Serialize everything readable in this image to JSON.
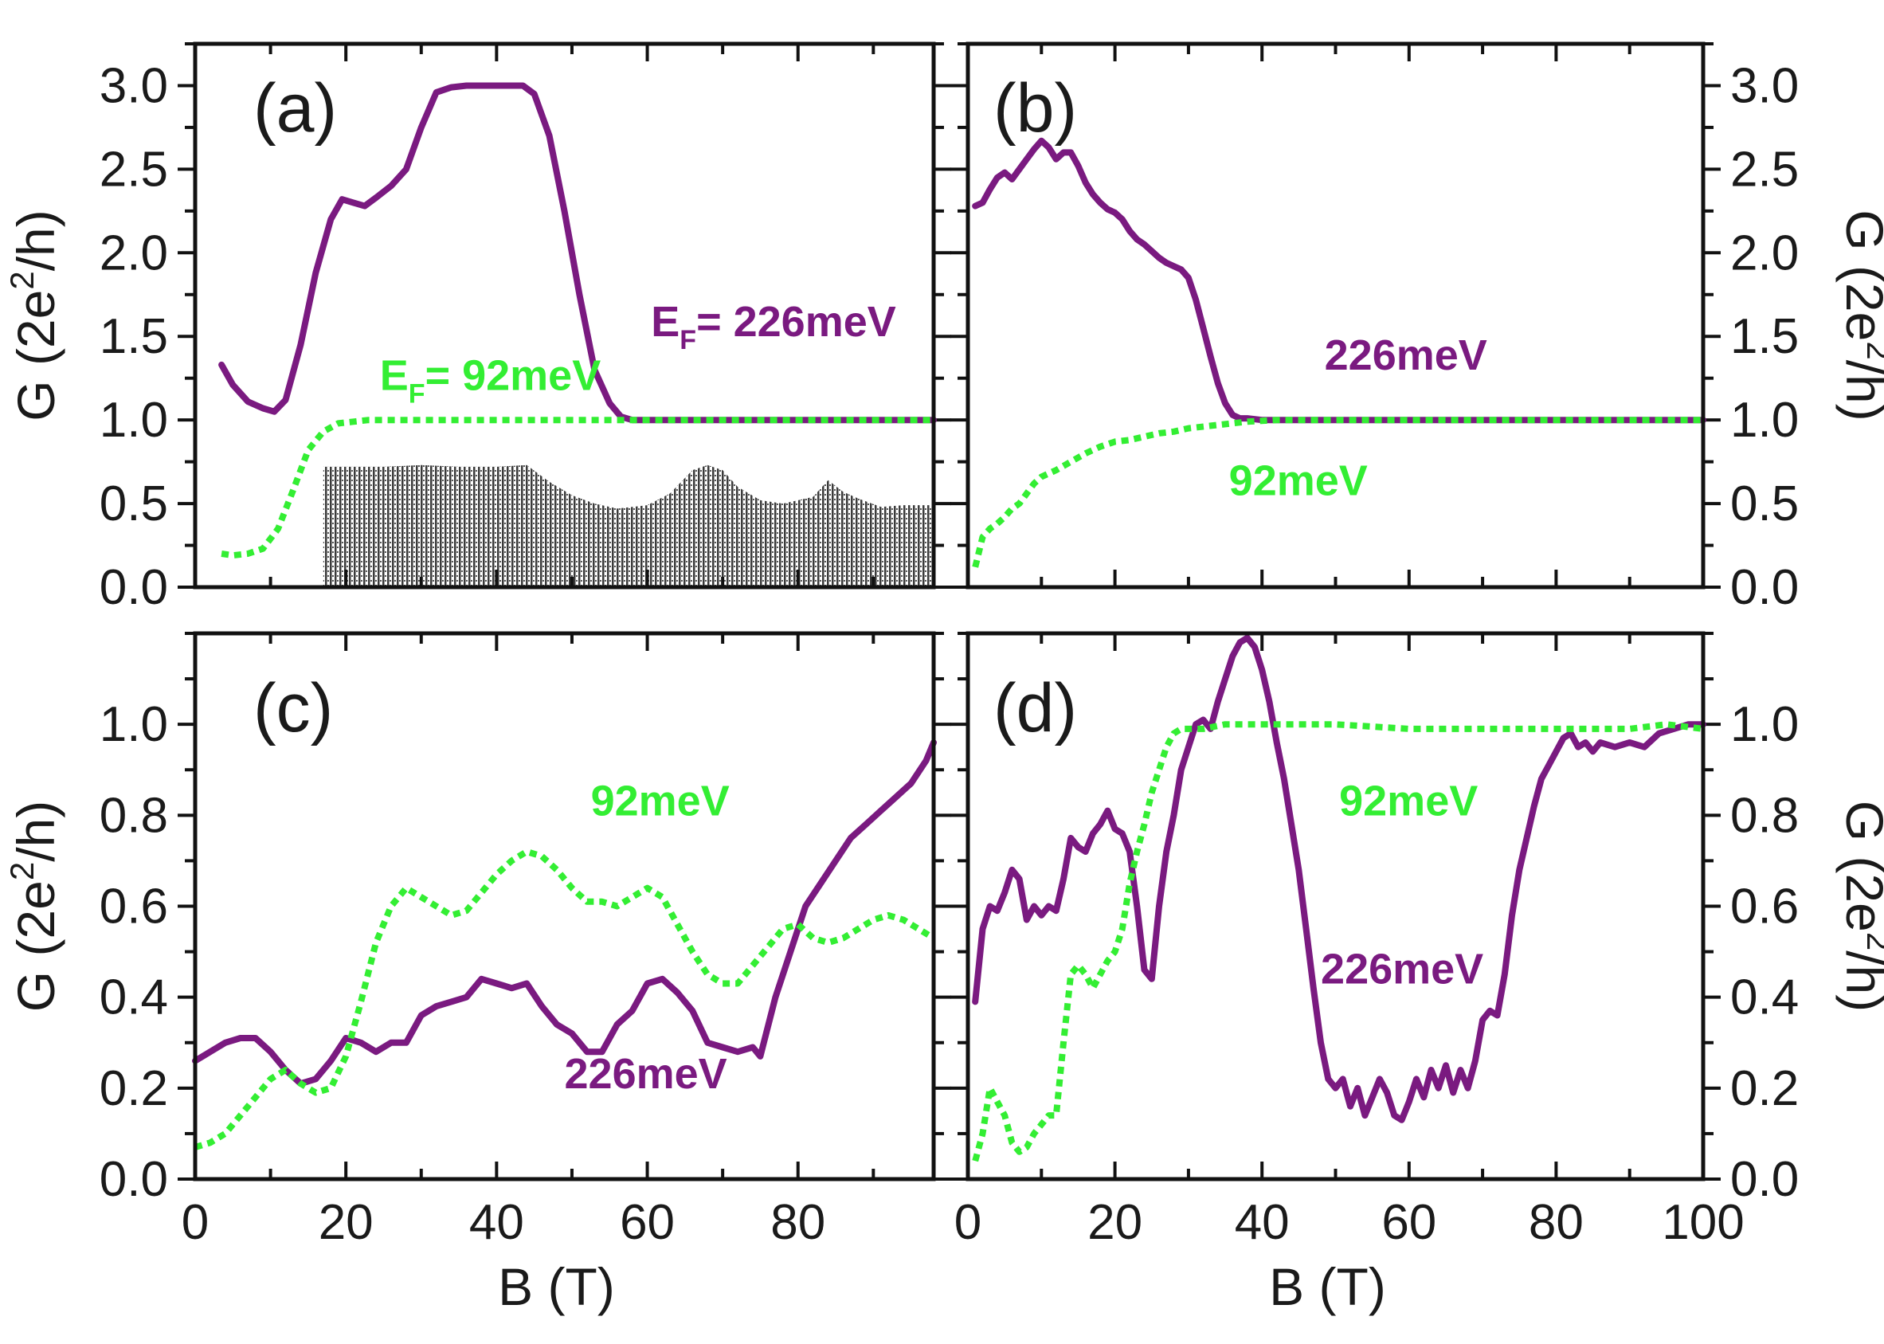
{
  "chart_data": [
    {
      "panel": "a",
      "type": "line",
      "label": "(a)",
      "xlabel": "",
      "ylabel": "G (2e^2/h)",
      "ylabel_parts": {
        "pre": "G (2e",
        "sup": "2",
        "post": "/h)"
      },
      "xlim": [
        0,
        98
      ],
      "ylim": [
        0,
        3.25
      ],
      "yticks": [
        "0.0",
        "0.5",
        "1.0",
        "1.5",
        "2.0",
        "2.5",
        "3.0"
      ],
      "xticks": [],
      "annotations": [
        {
          "text": "E_F= 226meV",
          "main": "E",
          "sub": "F",
          "rest": "= 226meV",
          "color": "#7a1a80",
          "x": 60.5,
          "y": 1.5
        },
        {
          "text": "E_F= 92meV",
          "main": "E",
          "sub": "F",
          "rest": "= 92meV",
          "color": "#33ee33",
          "x": 24.5,
          "y": 1.18
        }
      ],
      "shaded_region": {
        "color": "#333333",
        "x": [
          17,
          20,
          25,
          30,
          35,
          40,
          44,
          47,
          50,
          53,
          56,
          60,
          63,
          66,
          68,
          70,
          72,
          75,
          78,
          82,
          84,
          86,
          88,
          91,
          94,
          98
        ],
        "y": [
          0.72,
          0.72,
          0.72,
          0.73,
          0.72,
          0.72,
          0.73,
          0.63,
          0.55,
          0.5,
          0.47,
          0.49,
          0.56,
          0.7,
          0.73,
          0.7,
          0.6,
          0.52,
          0.5,
          0.54,
          0.64,
          0.57,
          0.53,
          0.48,
          0.49,
          0.49
        ]
      },
      "series": [
        {
          "name": "226meV",
          "color": "#7a1a80",
          "style": "solid",
          "x": [
            3.5,
            5,
            7,
            9,
            10.5,
            12,
            14,
            16,
            18,
            19.5,
            21,
            22.5,
            24,
            26,
            28,
            30,
            32,
            34,
            36,
            38,
            40,
            42,
            43.5,
            45,
            47,
            49,
            51,
            53,
            55,
            56.5,
            58,
            62,
            70,
            80,
            90,
            98
          ],
          "y": [
            1.33,
            1.21,
            1.11,
            1.07,
            1.05,
            1.12,
            1.45,
            1.88,
            2.2,
            2.32,
            2.3,
            2.28,
            2.33,
            2.4,
            2.5,
            2.75,
            2.96,
            2.99,
            3.0,
            3.0,
            3.0,
            3.0,
            3.0,
            2.95,
            2.7,
            2.25,
            1.75,
            1.3,
            1.1,
            1.02,
            1.0,
            1.0,
            1.0,
            1.0,
            1.0,
            1.0
          ]
        },
        {
          "name": "92meV",
          "color": "#33ee33",
          "style": "dotted",
          "x": [
            3.5,
            5,
            7,
            9,
            11,
            13,
            15,
            17,
            19,
            21,
            23,
            26,
            30,
            40,
            50,
            60,
            70,
            80,
            90,
            98
          ],
          "y": [
            0.2,
            0.19,
            0.2,
            0.23,
            0.35,
            0.58,
            0.82,
            0.93,
            0.98,
            0.99,
            1.0,
            1.0,
            1.0,
            1.0,
            1.0,
            1.0,
            1.0,
            1.0,
            1.0,
            1.0
          ]
        }
      ]
    },
    {
      "panel": "b",
      "type": "line",
      "label": "(b)",
      "xlabel": "",
      "ylabel": "G (2e^2/h)",
      "ylabel_parts": {
        "pre": "G (2e",
        "sup": "2",
        "post": "/h)"
      },
      "xlim": [
        0,
        100
      ],
      "ylim": [
        0,
        3.25
      ],
      "yticks": [
        "0.0",
        "0.5",
        "1.0",
        "1.5",
        "2.0",
        "2.5",
        "3.0"
      ],
      "xticks": [],
      "annotations": [
        {
          "text": "226meV",
          "color": "#7a1a80",
          "x": 48.5,
          "y": 1.3
        },
        {
          "text": "92meV",
          "color": "#33ee33",
          "x": 35.5,
          "y": 0.55
        }
      ],
      "series": [
        {
          "name": "226meV",
          "color": "#7a1a80",
          "style": "solid",
          "x": [
            1,
            2,
            3,
            4,
            5,
            6,
            7,
            8,
            9,
            10,
            11,
            12,
            13,
            14,
            15,
            16,
            17,
            18,
            19,
            20,
            21,
            22,
            23,
            24,
            25,
            26,
            27,
            28,
            29,
            30,
            31,
            32,
            33,
            34,
            35,
            36,
            37,
            38,
            40,
            45,
            55,
            70,
            85,
            100
          ],
          "y": [
            2.28,
            2.3,
            2.38,
            2.45,
            2.48,
            2.44,
            2.5,
            2.56,
            2.62,
            2.67,
            2.63,
            2.56,
            2.6,
            2.6,
            2.52,
            2.42,
            2.35,
            2.3,
            2.26,
            2.24,
            2.2,
            2.13,
            2.08,
            2.05,
            2.01,
            1.97,
            1.94,
            1.92,
            1.9,
            1.85,
            1.72,
            1.55,
            1.38,
            1.22,
            1.1,
            1.03,
            1.01,
            1.01,
            1.0,
            1.0,
            1.0,
            1.0,
            1.0,
            1.0
          ]
        },
        {
          "name": "92meV",
          "color": "#33ee33",
          "style": "dotted",
          "x": [
            1,
            2,
            3,
            4,
            5,
            6,
            7,
            8,
            9,
            10,
            12,
            14,
            16,
            18,
            20,
            22,
            24,
            26,
            28,
            30,
            34,
            38,
            42,
            50,
            60,
            80,
            100
          ],
          "y": [
            0.12,
            0.3,
            0.35,
            0.38,
            0.42,
            0.47,
            0.5,
            0.56,
            0.62,
            0.66,
            0.7,
            0.75,
            0.8,
            0.84,
            0.87,
            0.88,
            0.9,
            0.92,
            0.93,
            0.95,
            0.97,
            0.99,
            1.0,
            1.0,
            1.0,
            1.0,
            1.0
          ]
        }
      ]
    },
    {
      "panel": "c",
      "type": "line",
      "label": "(c)",
      "xlabel": "B (T)",
      "ylabel": "G (2e^2/h)",
      "ylabel_parts": {
        "pre": "G (2e",
        "sup": "2",
        "post": "/h)"
      },
      "xlim": [
        0,
        98
      ],
      "ylim": [
        0,
        1.2
      ],
      "yticks": [
        "0.0",
        "0.2",
        "0.4",
        "0.6",
        "0.8",
        "1.0"
      ],
      "xticks": [
        "0",
        "20",
        "40",
        "60",
        "80"
      ],
      "annotations": [
        {
          "text": "92meV",
          "color": "#33ee33",
          "x": 52.5,
          "y": 0.8
        },
        {
          "text": "226meV",
          "color": "#7a1a80",
          "x": 49,
          "y": 0.2
        }
      ],
      "series": [
        {
          "name": "226meV",
          "color": "#7a1a80",
          "style": "solid",
          "x": [
            0,
            2,
            4,
            6,
            8,
            10,
            12,
            14,
            16,
            18,
            20,
            22,
            24,
            26,
            28,
            30,
            32,
            34,
            36,
            38,
            40,
            42,
            44,
            46,
            48,
            50,
            52,
            54,
            56,
            58,
            60,
            62,
            64,
            66,
            68,
            70,
            72,
            74,
            75,
            77,
            79,
            81,
            83,
            85,
            87,
            89,
            91,
            93,
            95,
            97,
            98
          ],
          "y": [
            0.26,
            0.28,
            0.3,
            0.31,
            0.31,
            0.28,
            0.24,
            0.21,
            0.22,
            0.26,
            0.31,
            0.3,
            0.28,
            0.3,
            0.3,
            0.36,
            0.38,
            0.39,
            0.4,
            0.44,
            0.43,
            0.42,
            0.43,
            0.38,
            0.34,
            0.32,
            0.28,
            0.28,
            0.34,
            0.37,
            0.43,
            0.44,
            0.41,
            0.37,
            0.3,
            0.29,
            0.28,
            0.29,
            0.27,
            0.4,
            0.5,
            0.6,
            0.65,
            0.7,
            0.75,
            0.78,
            0.81,
            0.84,
            0.87,
            0.92,
            0.96
          ]
        },
        {
          "name": "92meV",
          "color": "#33ee33",
          "style": "dotted",
          "x": [
            0,
            2,
            4,
            6,
            8,
            10,
            12,
            14,
            16,
            18,
            20,
            22,
            24,
            26,
            28,
            30,
            32,
            34,
            36,
            38,
            40,
            42,
            44,
            46,
            48,
            50,
            52,
            54,
            56,
            58,
            60,
            62,
            64,
            66,
            68,
            70,
            72,
            74,
            76,
            78,
            80,
            82,
            84,
            86,
            88,
            90,
            92,
            94,
            96,
            98
          ],
          "y": [
            0.07,
            0.08,
            0.1,
            0.14,
            0.18,
            0.22,
            0.24,
            0.21,
            0.19,
            0.2,
            0.27,
            0.39,
            0.52,
            0.6,
            0.64,
            0.62,
            0.6,
            0.58,
            0.59,
            0.63,
            0.67,
            0.7,
            0.72,
            0.71,
            0.68,
            0.64,
            0.61,
            0.61,
            0.6,
            0.62,
            0.64,
            0.62,
            0.56,
            0.5,
            0.45,
            0.43,
            0.43,
            0.47,
            0.51,
            0.55,
            0.56,
            0.53,
            0.52,
            0.53,
            0.55,
            0.57,
            0.58,
            0.57,
            0.55,
            0.53
          ]
        }
      ]
    },
    {
      "panel": "d",
      "type": "line",
      "label": "(d)",
      "xlabel": "B (T)",
      "ylabel": "G (2e^2/h)",
      "ylabel_parts": {
        "pre": "G (2e",
        "sup": "2",
        "post": "/h)"
      },
      "xlim": [
        0,
        100
      ],
      "ylim": [
        0,
        1.2
      ],
      "yticks": [
        "0.0",
        "0.2",
        "0.4",
        "0.6",
        "0.8",
        "1.0"
      ],
      "xticks": [
        "0",
        "20",
        "40",
        "60",
        "80",
        "100"
      ],
      "annotations": [
        {
          "text": "92meV",
          "color": "#33ee33",
          "x": 50.5,
          "y": 0.8
        },
        {
          "text": "226meV",
          "color": "#7a1a80",
          "x": 48,
          "y": 0.43
        }
      ],
      "series": [
        {
          "name": "226meV",
          "color": "#7a1a80",
          "style": "solid",
          "x": [
            1,
            2,
            3,
            4,
            5,
            6,
            7,
            8,
            9,
            10,
            11,
            12,
            13,
            14,
            15,
            16,
            17,
            18,
            19,
            20,
            21,
            22,
            23,
            24,
            25,
            26,
            27,
            28,
            29,
            30,
            31,
            32,
            33,
            34,
            35,
            36,
            37,
            38,
            39,
            40,
            41,
            42,
            43,
            44,
            45,
            46,
            47,
            48,
            49,
            50,
            51,
            52,
            53,
            54,
            55,
            56,
            57,
            58,
            59,
            60,
            61,
            62,
            63,
            64,
            65,
            66,
            67,
            68,
            69,
            70,
            71,
            72,
            73,
            74,
            75,
            76,
            77,
            78,
            79,
            80,
            81,
            82,
            83,
            84,
            85,
            86,
            88,
            90,
            92,
            94,
            96,
            98,
            100
          ],
          "y": [
            0.39,
            0.55,
            0.6,
            0.59,
            0.63,
            0.68,
            0.66,
            0.57,
            0.6,
            0.58,
            0.6,
            0.59,
            0.66,
            0.75,
            0.73,
            0.72,
            0.76,
            0.78,
            0.81,
            0.77,
            0.76,
            0.72,
            0.6,
            0.46,
            0.44,
            0.6,
            0.72,
            0.8,
            0.9,
            0.95,
            1.0,
            1.01,
            0.99,
            1.05,
            1.1,
            1.15,
            1.18,
            1.19,
            1.17,
            1.12,
            1.05,
            0.96,
            0.88,
            0.78,
            0.68,
            0.55,
            0.42,
            0.3,
            0.22,
            0.2,
            0.22,
            0.16,
            0.2,
            0.14,
            0.18,
            0.22,
            0.19,
            0.14,
            0.13,
            0.17,
            0.22,
            0.18,
            0.24,
            0.2,
            0.25,
            0.19,
            0.24,
            0.2,
            0.26,
            0.35,
            0.37,
            0.36,
            0.45,
            0.58,
            0.68,
            0.75,
            0.82,
            0.88,
            0.91,
            0.94,
            0.97,
            0.98,
            0.95,
            0.96,
            0.94,
            0.96,
            0.95,
            0.96,
            0.95,
            0.98,
            0.99,
            1.0,
            1.0
          ]
        },
        {
          "name": "92meV",
          "color": "#33ee33",
          "style": "dotted",
          "x": [
            1,
            2,
            3,
            4,
            5,
            6,
            7,
            8,
            9,
            10,
            11,
            12,
            13,
            14,
            15,
            16,
            17,
            18,
            19,
            20,
            21,
            22,
            23,
            24,
            25,
            26,
            27,
            28,
            29,
            30,
            32,
            35,
            40,
            50,
            60,
            70,
            80,
            85,
            90,
            95,
            100
          ],
          "y": [
            0.04,
            0.1,
            0.2,
            0.17,
            0.14,
            0.08,
            0.06,
            0.07,
            0.1,
            0.12,
            0.14,
            0.14,
            0.3,
            0.45,
            0.47,
            0.45,
            0.42,
            0.45,
            0.48,
            0.5,
            0.55,
            0.65,
            0.72,
            0.78,
            0.85,
            0.9,
            0.95,
            0.98,
            0.99,
            0.99,
            0.99,
            1.0,
            1.0,
            1.0,
            0.99,
            0.99,
            0.99,
            0.99,
            0.99,
            1.0,
            0.99
          ]
        }
      ]
    }
  ]
}
